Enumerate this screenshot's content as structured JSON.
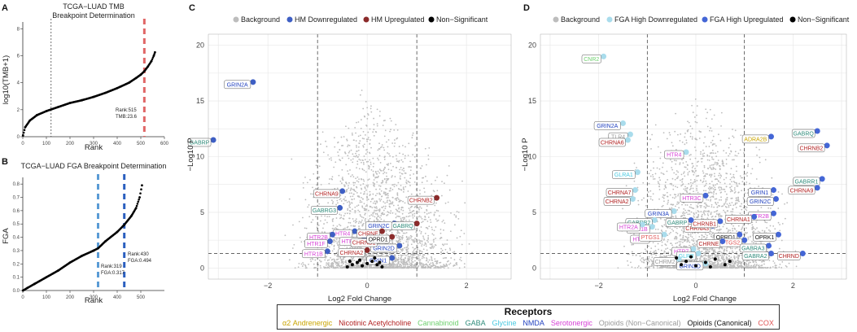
{
  "colors": {
    "bg": "#bdbdbd",
    "hm_down": "#3e5fc4",
    "hm_up": "#8b2b2b",
    "nonsig": "#000000",
    "fga_down": "#a9dcec",
    "fga_up": "#4466d6",
    "tmb_cut": "#e06666",
    "fga_cut": "#5a9bd5",
    "fga_cut2": "#2b5fbf"
  },
  "receptor_colors": {
    "a2": "#c9a400",
    "nic": "#b22222",
    "can": "#6fd06f",
    "gaba": "#2e8b7a",
    "gly": "#48c9e0",
    "nmda": "#1f3fbf",
    "sero": "#d63fd6",
    "opnc": "#9a9a9a",
    "opc": "#111111",
    "cox": "#e05555"
  },
  "panels": {
    "A": {
      "letter": "A",
      "title1": "TCGA−LUAD TMB",
      "title2": "Breakpoint Determination",
      "xlabel": "Rank",
      "ylabel": "log10(TMB+1)",
      "annotation1": "Rank:515",
      "annotation2": "TMB:23.6"
    },
    "B": {
      "letter": "B",
      "title": "TCGA−LUAD FGA Breakpoint Determination",
      "xlabel": "Rank",
      "ylabel": "FGA",
      "annotation1": "Rank:319",
      "annotation2": "FGA:0.317",
      "annotation3": "Rank:430",
      "annotation4": "FGA:0.494"
    },
    "C": {
      "letter": "C",
      "xlabel": "Log2 Fold Change",
      "ylabel": "−Log10 P",
      "legend": [
        "Background",
        "HM Downregulated",
        "HM Upregulated",
        "Non−Significant"
      ]
    },
    "D": {
      "letter": "D",
      "xlabel": "Log2 Fold Change",
      "ylabel": "−Log10 P",
      "legend": [
        "Background",
        "FGA High Downregulated",
        "FGA High Upregulated",
        "Non−Significant"
      ]
    }
  },
  "chart_data": [
    {
      "type": "scatter",
      "name": "TMB rank curve",
      "title": "TCGA−LUAD TMB Breakpoint Determination",
      "xlabel": "Rank",
      "ylabel": "log10(TMB+1)",
      "xlim": [
        0,
        600
      ],
      "ylim": [
        0,
        8.5
      ],
      "xticks": [
        0,
        100,
        200,
        300,
        400,
        500,
        600
      ],
      "yticks": [
        0,
        2,
        4,
        6,
        8
      ],
      "vlines": [
        {
          "x": 120,
          "style": "dotted"
        },
        {
          "x": 515,
          "style": "dashed-red"
        }
      ],
      "x": [
        1,
        10,
        30,
        60,
        100,
        150,
        200,
        250,
        300,
        350,
        400,
        450,
        480,
        500,
        515,
        530,
        545,
        555,
        560
      ],
      "y": [
        0.1,
        0.7,
        1.2,
        1.6,
        1.9,
        2.2,
        2.5,
        2.7,
        2.95,
        3.25,
        3.6,
        4.0,
        4.35,
        4.6,
        4.85,
        5.2,
        5.6,
        6.0,
        6.25
      ]
    },
    {
      "type": "scatter",
      "name": "FGA rank curve",
      "title": "TCGA−LUAD FGA Breakpoint Determination",
      "xlabel": "Rank",
      "ylabel": "FGA",
      "xlim": [
        0,
        600
      ],
      "ylim": [
        0,
        0.85
      ],
      "xticks": [
        0,
        100,
        200,
        300,
        400,
        500
      ],
      "yticks": [
        0.0,
        0.1,
        0.2,
        0.3,
        0.4,
        0.5,
        0.6,
        0.7,
        0.8
      ],
      "vlines": [
        {
          "x": 319,
          "style": "dashed-lightblue"
        },
        {
          "x": 430,
          "style": "dashed-blue"
        }
      ],
      "x": [
        1,
        20,
        50,
        100,
        150,
        200,
        250,
        300,
        319,
        350,
        400,
        430,
        460,
        480,
        495,
        505
      ],
      "y": [
        0.0,
        0.02,
        0.05,
        0.1,
        0.15,
        0.21,
        0.26,
        0.3,
        0.317,
        0.37,
        0.44,
        0.494,
        0.56,
        0.62,
        0.7,
        0.79
      ]
    },
    {
      "type": "scatter",
      "name": "HM volcano",
      "xlabel": "Log2 Fold Change",
      "ylabel": "−Log10 P",
      "xlim": [
        -3.2,
        2.9
      ],
      "ylim": [
        -1,
        21
      ],
      "xticks": [
        -2,
        0,
        2
      ],
      "yticks": [
        0,
        5,
        10,
        15,
        20
      ],
      "vlines": [
        -1,
        1
      ],
      "hline": 1.3,
      "series": [
        {
          "name": "HM Downregulated",
          "points": [
            [
              -2.3,
              16.7,
              "GRIN2A",
              "nmda"
            ],
            [
              -3.1,
              11.5,
              "GABRP",
              "gaba"
            ],
            [
              -0.5,
              6.9,
              "CHRNA9",
              "nic"
            ],
            [
              -0.55,
              5.4,
              "GABRG3",
              "gaba"
            ],
            [
              -0.25,
              3.3,
              "HTR4",
              "sero"
            ],
            [
              -0.05,
              2.6,
              "HTR3A",
              "sero"
            ],
            [
              -0.7,
              3.0,
              "HTR2B",
              "sero"
            ],
            [
              -0.75,
              2.4,
              "HTR1F",
              "sero"
            ],
            [
              -0.8,
              1.5,
              "HTR1B",
              "sero"
            ],
            [
              0.5,
              0.9,
              "GRIN1",
              "nmda"
            ],
            [
              0.65,
              2.0,
              "GRIN2D",
              "nmda"
            ],
            [
              0.55,
              4.0,
              "GRIN2C",
              "nmda"
            ]
          ]
        },
        {
          "name": "HM Upregulated",
          "points": [
            [
              1.4,
              6.3,
              "CHRNB2",
              "nic"
            ],
            [
              0.3,
              3.3,
              "CHRNE",
              "nic"
            ],
            [
              0.25,
              2.5,
              "CHRNB1",
              "nic"
            ],
            [
              0.0,
              1.6,
              "CHRNA2",
              "nic"
            ],
            [
              1.0,
              4.0,
              "GABRQ",
              "gaba"
            ],
            [
              0.5,
              2.8,
              "OPRD1",
              "opc"
            ]
          ]
        },
        {
          "name": "Non−Significant",
          "points": [
            [
              -0.4,
              0.1
            ],
            [
              -0.3,
              0.3
            ],
            [
              -0.2,
              0.5
            ],
            [
              -0.1,
              0.2
            ],
            [
              0.0,
              0.4
            ],
            [
              0.1,
              0.6
            ],
            [
              0.2,
              0.3
            ],
            [
              0.3,
              0.1
            ],
            [
              -0.15,
              0.7
            ],
            [
              0.15,
              0.9
            ],
            [
              0.25,
              0.5
            ],
            [
              -0.35,
              0.6
            ]
          ]
        }
      ]
    },
    {
      "type": "scatter",
      "name": "FGA volcano",
      "xlabel": "Log2 Fold Change",
      "ylabel": "−Log10 P",
      "xlim": [
        -3.2,
        3.1
      ],
      "ylim": [
        -1,
        21
      ],
      "xticks": [
        -2,
        0,
        2
      ],
      "yticks": [
        0,
        5,
        10,
        15,
        20
      ],
      "vlines": [
        -1,
        1
      ],
      "hline": 1.3,
      "series": [
        {
          "name": "FGA High Downregulated",
          "points": [
            [
              -1.9,
              19.0,
              "CNR2",
              "can"
            ],
            [
              -1.5,
              13.0,
              "GRIN2A",
              "nmda"
            ],
            [
              -1.35,
              12.0,
              "TLR4",
              "opnc"
            ],
            [
              -1.4,
              11.5,
              "CHRNA6",
              "nic"
            ],
            [
              -0.2,
              10.4,
              "HTR4",
              "sero"
            ],
            [
              -1.2,
              8.6,
              "GLRA1",
              "gly"
            ],
            [
              -1.25,
              7.0,
              "CHRNA7",
              "nic"
            ],
            [
              -1.3,
              6.2,
              "CHRNA2",
              "nic"
            ],
            [
              -0.45,
              5.1,
              "GRIN3A",
              "nmda"
            ],
            [
              -0.85,
              4.3,
              "GABRB2",
              "gaba"
            ],
            [
              -0.9,
              3.7,
              "HTR1B",
              "sero"
            ],
            [
              -0.9,
              2.8,
              "HTR6",
              "sero"
            ],
            [
              -0.05,
              1.7,
              "HTR7",
              "sero"
            ],
            [
              0.05,
              1.3,
              "GLRB",
              "gly"
            ],
            [
              -0.35,
              0.8,
              "CHRM2",
              "opnc"
            ],
            [
              0.2,
              0.4,
              "GRIN2D",
              "nmda"
            ],
            [
              -0.65,
              3.0,
              "PTGS1",
              "cox"
            ],
            [
              -1.1,
              3.9,
              "HTR2A",
              "sero"
            ]
          ]
        },
        {
          "name": "FGA High Upregulated",
          "points": [
            [
              2.5,
              12.3,
              "GABRQ",
              "gaba"
            ],
            [
              2.7,
              11.0,
              "CHRNB2",
              "nic"
            ],
            [
              1.55,
              11.8,
              "ADRA2B",
              "a2"
            ],
            [
              2.6,
              8.0,
              "GABRR1",
              "gaba"
            ],
            [
              2.5,
              7.2,
              "CHRNA9",
              "nic"
            ],
            [
              1.6,
              7.0,
              "GRIN1",
              "nmda"
            ],
            [
              1.65,
              6.2,
              "GRIN2C",
              "nmda"
            ],
            [
              1.6,
              4.9,
              "HTR2B",
              "sero"
            ],
            [
              0.35,
              3.8,
              "CHRNA3",
              "nic"
            ],
            [
              1.2,
              4.6,
              "CHRNA1",
              "nic"
            ],
            [
              0.9,
              3.0,
              "OPRD1",
              "opc"
            ],
            [
              1.0,
              2.5,
              "PTGS2",
              "cox"
            ],
            [
              1.5,
              2.0,
              "GABRA3",
              "gaba"
            ],
            [
              1.55,
              1.3,
              "GABRA2",
              "gaba"
            ],
            [
              2.2,
              1.3,
              "CHRND",
              "nic"
            ],
            [
              0.5,
              4.2,
              "CHRNB1",
              "nic"
            ],
            [
              0.55,
              2.4,
              "CHRNE",
              "nic"
            ],
            [
              1.7,
              3.0,
              "OPRK1",
              "opc"
            ],
            [
              -0.1,
              4.3,
              "GABRP",
              "gaba"
            ],
            [
              0.2,
              6.5,
              "HTR3C",
              "sero"
            ]
          ]
        },
        {
          "name": "Non−Significant",
          "points": [
            [
              -0.3,
              0.3
            ],
            [
              -0.2,
              0.6
            ],
            [
              0.0,
              0.2
            ],
            [
              0.2,
              0.5
            ],
            [
              0.4,
              0.8
            ],
            [
              0.6,
              0.3
            ],
            [
              -0.1,
              1.0
            ],
            [
              0.3,
              0.1
            ],
            [
              0.7,
              0.6
            ],
            [
              -0.4,
              0.9
            ]
          ]
        }
      ]
    }
  ],
  "receptors": {
    "title": "Receptors",
    "items": [
      {
        "label": "α2 Andrenergic",
        "key": "a2"
      },
      {
        "label": "Nicotinic Acetylcholine",
        "key": "nic"
      },
      {
        "label": "Cannabinoid",
        "key": "can"
      },
      {
        "label": "GABA",
        "key": "gaba"
      },
      {
        "label": "Glycine",
        "key": "gly"
      },
      {
        "label": "NMDA",
        "key": "nmda"
      },
      {
        "label": "Serotonergic",
        "key": "sero"
      },
      {
        "label": "Opioids (Non−Canonical)",
        "key": "opnc"
      },
      {
        "label": "Opioids (Canonical)",
        "key": "opc"
      },
      {
        "label": "COX",
        "key": "cox"
      }
    ]
  }
}
